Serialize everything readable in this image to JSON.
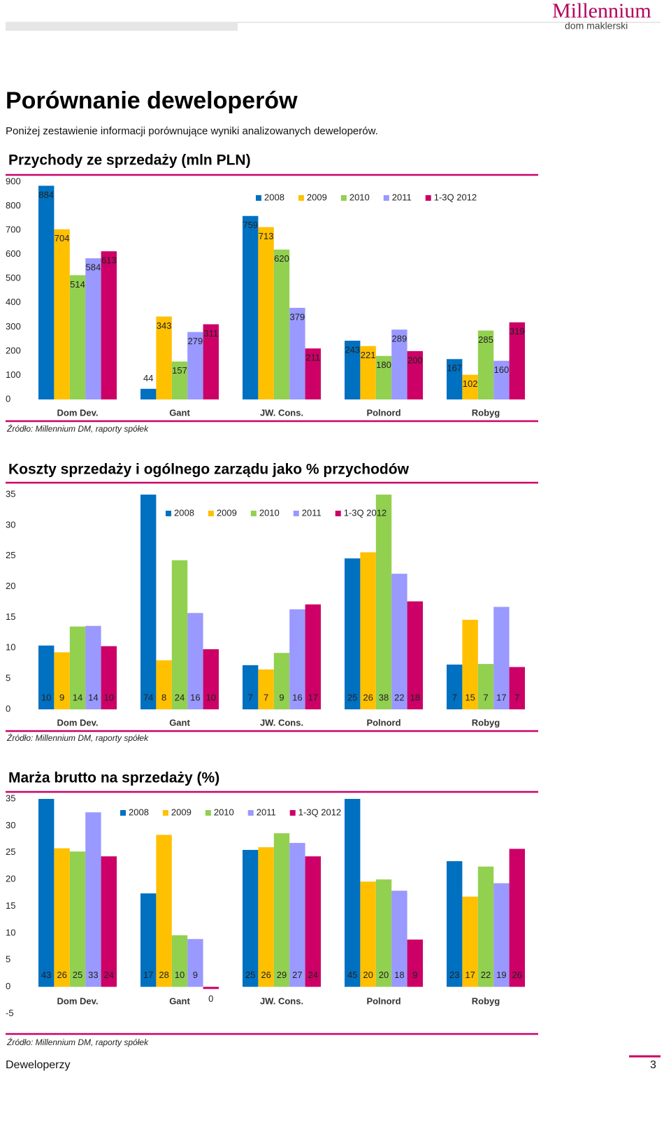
{
  "header": {
    "logo": "Millennium",
    "logo_sub": "dom maklerski",
    "title": "Porównanie deweloperów",
    "intro": "Poniżej zestawienie informacji porównujące wyniki analizowanych deweloperów."
  },
  "chart_data": [
    {
      "type": "bar",
      "title": "Przychody ze sprzedaży (mln PLN)",
      "categories": [
        "Dom Dev.",
        "Gant",
        "JW. Cons.",
        "Polnord",
        "Robyg"
      ],
      "series": [
        {
          "name": "2008",
          "color": "#0070c0",
          "values": [
            884,
            44,
            759,
            243,
            167
          ]
        },
        {
          "name": "2009",
          "color": "#ffc000",
          "values": [
            704,
            343,
            713,
            221,
            102
          ]
        },
        {
          "name": "2010",
          "color": "#92d050",
          "values": [
            514,
            157,
            620,
            180,
            285
          ]
        },
        {
          "name": "2011",
          "color": "#9999ff",
          "values": [
            584,
            279,
            379,
            289,
            160
          ]
        },
        {
          "name": "1-3Q 2012",
          "color": "#cc0066",
          "values": [
            613,
            311,
            211,
            200,
            319
          ]
        }
      ],
      "ylim": [
        0,
        900
      ],
      "yticks": [
        0,
        100,
        200,
        300,
        400,
        500,
        600,
        700,
        800,
        900
      ],
      "grid": false,
      "legend": "top-right",
      "source": "Źródło: Millennium DM, raporty spółek"
    },
    {
      "type": "bar",
      "title": "Koszty sprzedaży i ogólnego zarządu jako % przychodów",
      "categories": [
        "Dom Dev.",
        "Gant",
        "JW. Cons.",
        "Polnord",
        "Robyg"
      ],
      "series": [
        {
          "name": "2008",
          "color": "#0070c0",
          "values": [
            10.4,
            74,
            7.2,
            24.6,
            7.3
          ],
          "value_labels": [
            "10",
            "74",
            "7",
            "25",
            "7"
          ]
        },
        {
          "name": "2009",
          "color": "#ffc000",
          "values": [
            9.3,
            8.0,
            6.5,
            25.6,
            14.6
          ],
          "value_labels": [
            "9",
            "8",
            "7",
            "26",
            "15"
          ]
        },
        {
          "name": "2010",
          "color": "#92d050",
          "values": [
            13.5,
            24.3,
            9.2,
            38,
            7.4
          ],
          "value_labels": [
            "14",
            "24",
            "9",
            "38",
            "7"
          ]
        },
        {
          "name": "2011",
          "color": "#9999ff",
          "values": [
            13.6,
            15.7,
            16.3,
            22.1,
            16.7
          ],
          "value_labels": [
            "14",
            "16",
            "16",
            "22",
            "17"
          ]
        },
        {
          "name": "1-3Q 2012",
          "color": "#cc0066",
          "values": [
            10.3,
            9.8,
            17.1,
            17.6,
            6.9
          ],
          "value_labels": [
            "10",
            "10",
            "17",
            "18",
            "7"
          ]
        }
      ],
      "ylim": [
        0,
        35
      ],
      "yticks": [
        0,
        5,
        10,
        15,
        20,
        25,
        30,
        35
      ],
      "grid": false,
      "legend": "top",
      "source": "Źródło: Millennium DM, raporty spółek"
    },
    {
      "type": "bar",
      "title": "Marża brutto na sprzedaży (%)",
      "categories": [
        "Dom Dev.",
        "Gant",
        "JW. Cons.",
        "Polnord",
        "Robyg"
      ],
      "series": [
        {
          "name": "2008",
          "color": "#0070c0",
          "values": [
            43,
            17.4,
            25.5,
            45,
            23.4
          ],
          "value_labels": [
            "43",
            "17",
            "25",
            "45",
            "23"
          ]
        },
        {
          "name": "2009",
          "color": "#ffc000",
          "values": [
            25.8,
            28.3,
            26,
            19.6,
            16.8
          ],
          "value_labels": [
            "26",
            "28",
            "26",
            "20",
            "17"
          ]
        },
        {
          "name": "2010",
          "color": "#92d050",
          "values": [
            25.2,
            9.6,
            28.6,
            20,
            22.4
          ],
          "value_labels": [
            "25",
            "10",
            "29",
            "20",
            "22"
          ]
        },
        {
          "name": "2011",
          "color": "#9999ff",
          "values": [
            32.5,
            8.9,
            26.8,
            17.9,
            19.3
          ],
          "value_labels": [
            "33",
            "9",
            "27",
            "18",
            "19"
          ]
        },
        {
          "name": "1-3Q 2012",
          "color": "#cc0066",
          "values": [
            24.3,
            -0.4,
            24.3,
            8.8,
            25.7
          ],
          "value_labels": [
            "24",
            "0",
            "24",
            "9",
            "26"
          ]
        }
      ],
      "ylim": [
        -5,
        35
      ],
      "yticks": [
        -5,
        0,
        5,
        10,
        15,
        20,
        25,
        30,
        35
      ],
      "grid": false,
      "legend": "top",
      "source": "Źródło: Millennium DM, raporty spółek"
    }
  ],
  "footer": {
    "text": "Deweloperzy",
    "page": 3
  }
}
